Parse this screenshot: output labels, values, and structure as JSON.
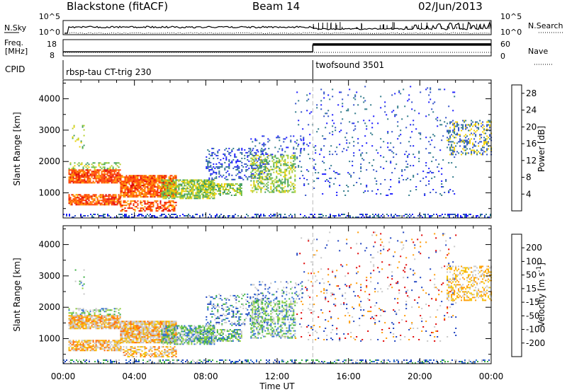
{
  "header": {
    "station": "Blackstone (fitACF)",
    "beam": "Beam 14",
    "date": "02/Jun/2013"
  },
  "chart_data": [
    {
      "type": "line",
      "panel": "noise",
      "left_label": "N.Sky",
      "left_ticks": [
        "10^5",
        "10^0"
      ],
      "right_label": "N.Search",
      "right_ticks": [
        "10^5",
        "10^0"
      ],
      "grid": false
    },
    {
      "type": "line",
      "panel": "frequency",
      "left_label_line1": "Freq.",
      "left_label_line2": "[MHz]",
      "left_ticks": [
        "18",
        "8"
      ],
      "right_label": "Nave",
      "right_ticks": [
        "60",
        "0"
      ],
      "freq_steps": [
        {
          "from": "00:00",
          "to": "14:00",
          "value": 10.5
        },
        {
          "from": "14:00",
          "to": "24:00",
          "value": 15
        }
      ],
      "grid": false
    },
    {
      "type": "table",
      "panel": "cpid",
      "label": "CPID",
      "programs": [
        {
          "name": "rbsp-tau CT-trig 230",
          "start": "00:00",
          "end": "14:00"
        },
        {
          "name": "twofsound 3501",
          "start": "14:00",
          "end": "24:00"
        }
      ]
    },
    {
      "type": "heatmap",
      "panel": "power",
      "ylabel": "Slant Range [km]",
      "y_ticks": [
        1000,
        2000,
        3000,
        4000
      ],
      "ylim": [
        200,
        4600
      ],
      "x_ticks": [
        "00:00",
        "04:00",
        "08:00",
        "12:00",
        "16:00",
        "20:00",
        "00:00"
      ],
      "xlim_hours": [
        0,
        24
      ],
      "colorbar_label": "Power [dB]",
      "colorbar_ticks": [
        4,
        8,
        12,
        16,
        20,
        24,
        28
      ],
      "colorbar_range": [
        0,
        30
      ],
      "colors": [
        "#1a1aff",
        "#2f4fc8",
        "#2f7a8a",
        "#3c9a5a",
        "#66bb44",
        "#b8d030",
        "#f2d000",
        "#ffa500",
        "#ff7f00",
        "#ff4000",
        "#e00000"
      ]
    },
    {
      "type": "heatmap",
      "panel": "velocity",
      "ylabel": "Slant Range [km]",
      "y_ticks": [
        1000,
        2000,
        3000,
        4000
      ],
      "ylim": [
        200,
        4600
      ],
      "x_ticks": [
        "00:00",
        "04:00",
        "08:00",
        "12:00",
        "16:00",
        "20:00",
        "00:00"
      ],
      "xlabel": "Time UT",
      "colorbar_label": "Velocity [m s-1]",
      "colorbar_label_main": "Velocity [m s",
      "colorbar_label_sup": "-1",
      "colorbar_label_end": "]",
      "colorbar_ticks": [
        "200",
        "100",
        "50",
        "15",
        "-15",
        "-50",
        "-100",
        "-200"
      ],
      "colors": [
        "#1a3fbf",
        "#2f6fd0",
        "#3cb043",
        "#8ccf3c",
        "#c8c8c8",
        "#f5c000",
        "#ff9900",
        "#ff6600",
        "#e00000"
      ]
    }
  ]
}
